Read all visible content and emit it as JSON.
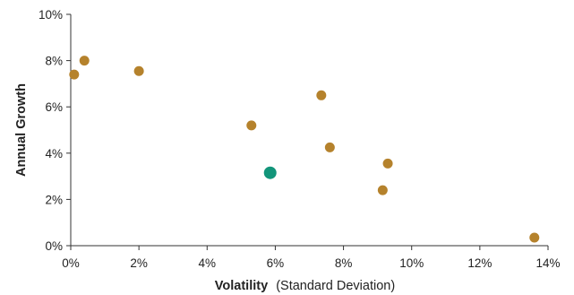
{
  "chart_data": {
    "type": "scatter",
    "xlabel_bold": "Volatility",
    "xlabel_rest": "(Standard Deviation)",
    "ylabel": "Annual Growth",
    "xlim": [
      0,
      14
    ],
    "ylim": [
      0,
      10
    ],
    "x_ticks": [
      0,
      2,
      4,
      6,
      8,
      10,
      12,
      14
    ],
    "x_tick_labels": [
      "0%",
      "2%",
      "4%",
      "6%",
      "8%",
      "10%",
      "12%",
      "14%"
    ],
    "y_ticks": [
      0,
      2,
      4,
      6,
      8,
      10
    ],
    "y_tick_labels": [
      "0%",
      "2%",
      "4%",
      "6%",
      "8%",
      "10%"
    ],
    "grid": false,
    "series": [
      {
        "color": "#b5822c",
        "points": [
          {
            "x": 0.1,
            "y": 7.4
          },
          {
            "x": 0.4,
            "y": 8.0
          },
          {
            "x": 2.0,
            "y": 7.55
          },
          {
            "x": 5.3,
            "y": 5.2
          },
          {
            "x": 7.35,
            "y": 6.5
          },
          {
            "x": 7.6,
            "y": 4.25
          },
          {
            "x": 9.3,
            "y": 3.55
          },
          {
            "x": 9.15,
            "y": 2.4
          },
          {
            "x": 13.6,
            "y": 0.35
          }
        ]
      },
      {
        "color": "#12957a",
        "points": [
          {
            "x": 5.85,
            "y": 3.15
          }
        ]
      }
    ]
  }
}
